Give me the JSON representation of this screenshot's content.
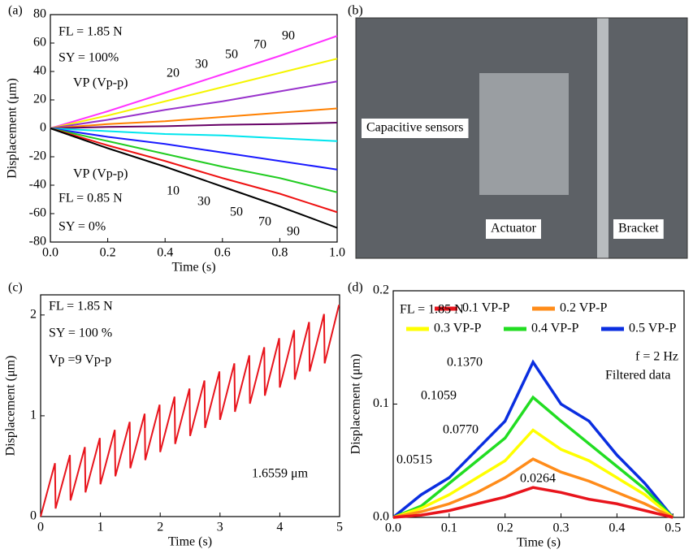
{
  "chart_data": [
    {
      "type": "line",
      "panel_label": "(a)",
      "x_label": "Time (s)",
      "y_label": "Displacement (μm)",
      "x": [
        0,
        0.2,
        0.4,
        0.6,
        0.8,
        1.0
      ],
      "series": [
        {
          "color": "#ff33ff",
          "values": [
            0,
            12,
            25,
            38,
            51,
            65
          ]
        },
        {
          "color": "#f5f500",
          "values": [
            0,
            9,
            19,
            29,
            39,
            49
          ]
        },
        {
          "color": "#9933cc",
          "values": [
            0,
            6,
            13,
            19,
            26,
            33
          ]
        },
        {
          "color": "#ff8000",
          "values": [
            0,
            3,
            5,
            8,
            11,
            14
          ]
        },
        {
          "color": "#660066",
          "values": [
            0,
            1,
            1.5,
            2.5,
            3,
            4
          ]
        },
        {
          "color": "#00e5ee",
          "values": [
            0,
            -2,
            -4,
            -5,
            -7,
            -9
          ]
        },
        {
          "color": "#1a1aff",
          "values": [
            0,
            -6,
            -11,
            -17,
            -23,
            -29
          ]
        },
        {
          "color": "#22cc22",
          "values": [
            0,
            -9,
            -18,
            -27,
            -35,
            -45
          ]
        },
        {
          "color": "#ee1111",
          "values": [
            0,
            -12,
            -23,
            -35,
            -46,
            -59
          ]
        },
        {
          "color": "#000000",
          "values": [
            0,
            -14,
            -27,
            -41,
            -55,
            -70
          ]
        }
      ],
      "xlim": [
        0,
        1
      ],
      "ylim": [
        -80,
        80
      ],
      "xticks": [
        {
          "value": 0,
          "label": "0.0"
        },
        {
          "value": 0.2,
          "label": "0.2"
        },
        {
          "value": 0.4,
          "label": "0.4"
        },
        {
          "value": 0.6,
          "label": "0.6"
        },
        {
          "value": 0.8,
          "label": "0.8"
        },
        {
          "value": 1,
          "label": "1.0"
        }
      ],
      "yticks": [
        -80,
        -60,
        -40,
        -20,
        0,
        20,
        40,
        60,
        80
      ],
      "annotations": [
        "FL = 1.85 N",
        "SY = 100%",
        "20",
        "30",
        "50",
        "70",
        "90",
        "VP (Vp-p)",
        "VP (Vp-p)",
        "FL = 0.85 N",
        "SY = 0%",
        "10",
        "30",
        "50",
        "70",
        "90"
      ]
    },
    {
      "type": "image",
      "panel_label": "(b)",
      "annotations": [
        "Capacitive sensors",
        "Actuator",
        "Bracket"
      ]
    },
    {
      "type": "line",
      "panel_label": "(c)",
      "x_label": "Time (s)",
      "y_label": "Displacement (μm)",
      "x": [
        0,
        0.24,
        0.25,
        0.49,
        0.5,
        0.74,
        0.75,
        0.99,
        1.0,
        1.24,
        1.25,
        1.49,
        1.5,
        1.74,
        1.75,
        1.99,
        2.0,
        2.24,
        2.25,
        2.49,
        2.5,
        2.74,
        2.75,
        2.99,
        3.0,
        3.24,
        3.25,
        3.49,
        3.5,
        3.74,
        3.75,
        3.99,
        4.0,
        4.24,
        4.25,
        4.49,
        4.5,
        4.74,
        4.75,
        4.99
      ],
      "series": [
        {
          "color": "#e8141c",
          "values": [
            0,
            0.53,
            0.08,
            0.61,
            0.16,
            0.69,
            0.24,
            0.78,
            0.32,
            0.86,
            0.4,
            0.94,
            0.48,
            1.02,
            0.56,
            1.11,
            0.64,
            1.19,
            0.72,
            1.27,
            0.8,
            1.35,
            0.88,
            1.44,
            0.96,
            1.52,
            1.04,
            1.6,
            1.12,
            1.68,
            1.2,
            1.77,
            1.28,
            1.85,
            1.36,
            1.93,
            1.44,
            2.01,
            1.52,
            2.1
          ]
        }
      ],
      "xlim": [
        0,
        5
      ],
      "ylim": [
        0,
        2.2
      ],
      "xticks": [
        0,
        1,
        2,
        3,
        4,
        5
      ],
      "yticks": [
        0,
        1,
        2
      ],
      "annotations": [
        "FL = 1.85 N",
        "SY = 100 %",
        "Vp =9 Vp-p",
        "1.6559 μm"
      ]
    },
    {
      "type": "line",
      "panel_label": "(d)",
      "x_label": "Time (s)",
      "y_label": "Displacement (μm)",
      "x": [
        0,
        0.05,
        0.1,
        0.15,
        0.2,
        0.25,
        0.3,
        0.35,
        0.4,
        0.45,
        0.5
      ],
      "series": [
        {
          "name": "0.5 VP-P",
          "color": "#0a2ee0",
          "values": [
            0,
            0.02,
            0.035,
            0.06,
            0.085,
            0.137,
            0.1,
            0.085,
            0.055,
            0.03,
            0
          ]
        },
        {
          "name": "0.4 VP-P",
          "color": "#22dd22",
          "values": [
            0,
            0.01,
            0.03,
            0.05,
            0.07,
            0.1059,
            0.085,
            0.065,
            0.045,
            0.025,
            0
          ]
        },
        {
          "name": "0.3 VP-P",
          "color": "#ffff00",
          "values": [
            0,
            0.008,
            0.02,
            0.035,
            0.05,
            0.077,
            0.06,
            0.05,
            0.035,
            0.02,
            0
          ]
        },
        {
          "name": "0.2 VP-P",
          "color": "#ff8c1a",
          "values": [
            0,
            0.005,
            0.012,
            0.022,
            0.035,
            0.0515,
            0.04,
            0.032,
            0.022,
            0.012,
            0
          ]
        },
        {
          "name": "0.1 VP-P",
          "color": "#e8141c",
          "values": [
            0,
            0.002,
            0.006,
            0.012,
            0.018,
            0.0264,
            0.022,
            0.016,
            0.012,
            0.006,
            0
          ]
        }
      ],
      "xlim": [
        0,
        0.52
      ],
      "ylim": [
        0,
        0.2
      ],
      "xticks": [
        {
          "value": 0,
          "label": "0.0"
        },
        {
          "value": 0.1,
          "label": "0.1"
        },
        {
          "value": 0.2,
          "label": "0.2"
        },
        {
          "value": 0.3,
          "label": "0.3"
        },
        {
          "value": 0.4,
          "label": "0.4"
        },
        {
          "value": 0.5,
          "label": "0.5"
        }
      ],
      "yticks": [
        {
          "value": 0,
          "label": "0.0"
        },
        {
          "value": 0.1,
          "label": "0.1"
        },
        {
          "value": 0.2,
          "label": "0.2"
        }
      ],
      "annotations": [
        "FL = 1.85 N",
        "f = 2 Hz",
        "Filtered data",
        "0.1370",
        "0.1059",
        "0.0770",
        "0.0515",
        "0.0264"
      ]
    }
  ]
}
